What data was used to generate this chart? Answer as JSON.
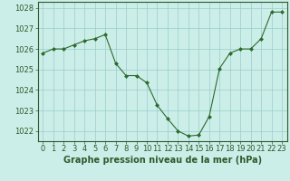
{
  "x": [
    0,
    1,
    2,
    3,
    4,
    5,
    6,
    7,
    8,
    9,
    10,
    11,
    12,
    13,
    14,
    15,
    16,
    17,
    18,
    19,
    20,
    21,
    22,
    23
  ],
  "y": [
    1025.8,
    1026.0,
    1026.0,
    1026.2,
    1026.4,
    1026.5,
    1026.7,
    1025.3,
    1024.7,
    1024.7,
    1024.35,
    1023.25,
    1022.6,
    1022.0,
    1021.75,
    1021.8,
    1022.7,
    1025.05,
    1025.8,
    1026.0,
    1026.0,
    1026.5,
    1027.8,
    1027.8
  ],
  "line_color": "#2d6a2d",
  "marker": "D",
  "marker_size": 2.0,
  "bg_color": "#cceee8",
  "grid_color": "#99cccc",
  "title": "Graphe pression niveau de la mer (hPa)",
  "ylim": [
    1021.5,
    1028.3
  ],
  "yticks": [
    1022,
    1023,
    1024,
    1025,
    1026,
    1027,
    1028
  ],
  "xticks": [
    0,
    1,
    2,
    3,
    4,
    5,
    6,
    7,
    8,
    9,
    10,
    11,
    12,
    13,
    14,
    15,
    16,
    17,
    18,
    19,
    20,
    21,
    22,
    23
  ],
  "tick_fontsize": 6.0,
  "title_fontsize": 7.0
}
